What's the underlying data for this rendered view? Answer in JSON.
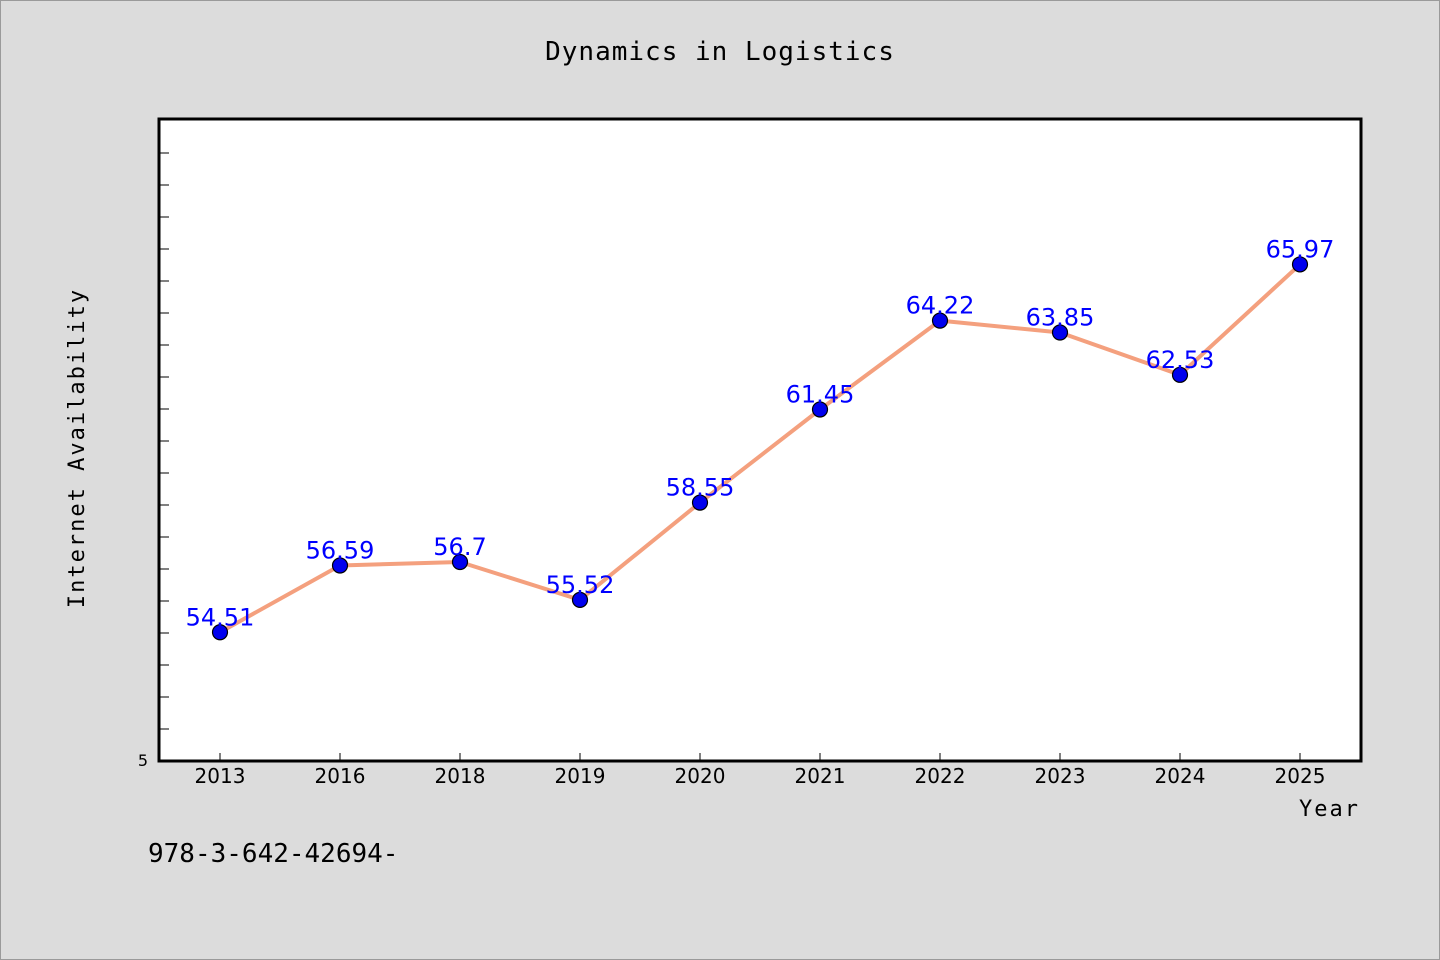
{
  "chart_data": {
    "type": "line",
    "title": "Dynamics in Logistics",
    "xlabel": "Year",
    "ylabel": "Internet Availability",
    "categories": [
      "2013",
      "2016",
      "2018",
      "2019",
      "2020",
      "2021",
      "2022",
      "2023",
      "2024",
      "2025"
    ],
    "series": [
      {
        "values": [
          54.51,
          56.59,
          56.7,
          55.52,
          58.55,
          61.45,
          64.22,
          63.85,
          62.53,
          65.97
        ],
        "data_labels": [
          "54.51",
          "56.59",
          "56.7",
          "55.52",
          "58.55",
          "61.45",
          "64.22",
          "63.85",
          "62.53",
          "65.97"
        ]
      }
    ],
    "y_tick_labels": [
      "5"
    ],
    "ylim": [
      50.5,
      70.5
    ],
    "grid": false,
    "line_color": "#f4a07e",
    "marker_color": "#0000ee",
    "label_color": "#0000ff",
    "frame_color": "#000000",
    "background_color": "#dcdcdc",
    "plot_background_color": "#ffffff"
  },
  "footer": {
    "text": "978-3-642-42694-"
  }
}
